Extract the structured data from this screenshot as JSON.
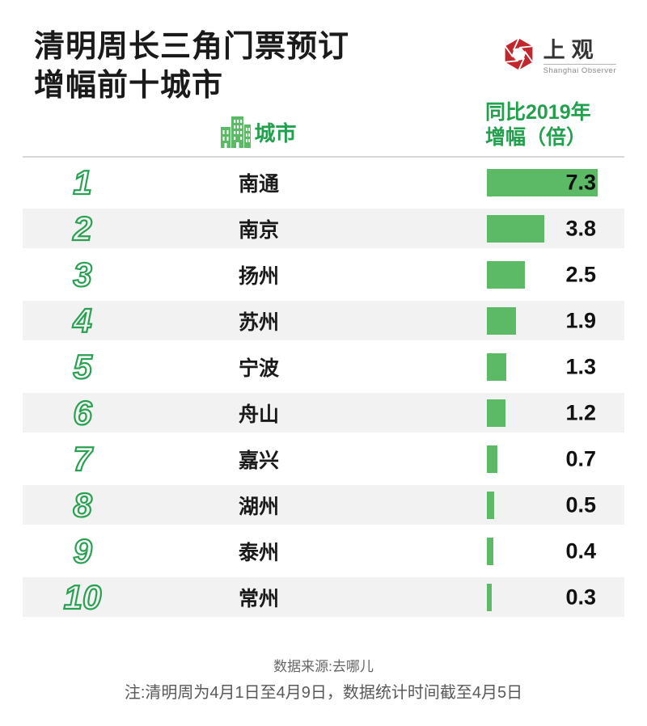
{
  "header": {
    "title_line1": "清明周长三角门票预订",
    "title_line2": "增幅前十城市",
    "logo": {
      "name": "上观",
      "subtitle": "Shanghai Observer"
    }
  },
  "columns": {
    "city_label": "城市",
    "value_label_line1": "同比2019年",
    "value_label_line2": "增幅（倍）"
  },
  "chart_data": {
    "type": "bar",
    "orientation": "horizontal",
    "title": "清明周长三角门票预订增幅前十城市",
    "value_unit": "倍",
    "categories": [
      "南通",
      "南京",
      "扬州",
      "苏州",
      "宁波",
      "舟山",
      "嘉兴",
      "湖州",
      "泰州",
      "常州"
    ],
    "ranks": [
      "1",
      "2",
      "3",
      "4",
      "5",
      "6",
      "7",
      "8",
      "9",
      "10"
    ],
    "values": [
      7.3,
      3.8,
      2.5,
      1.9,
      1.3,
      1.2,
      0.7,
      0.5,
      0.4,
      0.3
    ],
    "value_labels": [
      "7.3",
      "3.8",
      "2.5",
      "1.9",
      "1.3",
      "1.2",
      "0.7",
      "0.5",
      "0.4",
      "0.3"
    ],
    "xlim": [
      0,
      7.3
    ],
    "grid": false,
    "legend": false
  },
  "footer": {
    "source": "数据来源:去哪儿",
    "note": "注:清明周为4月1日至4月9日，数据统计时间截至4月5日"
  },
  "colors": {
    "accent_green": "#23a04d",
    "rank_green": "#2aa052",
    "bar_green": "#5cb966",
    "row_alt_gray": "#f2f2f2",
    "logo_red": "#c1272d",
    "text_black": "#1a1a1a",
    "footer_gray": "#595959"
  }
}
